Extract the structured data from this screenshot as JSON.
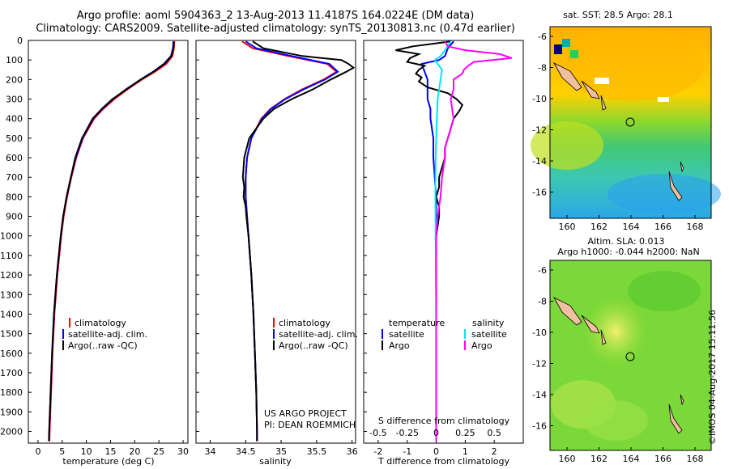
{
  "title": {
    "line1": "Argo profile: aoml 5904363_2 13-Aug-2013 11.4187S 164.0224E (DM data)",
    "line2": "Climatology: CARS2009. Satellite-adjusted climatology: synTS_20130813.nc (0.47d earlier)"
  },
  "credit": "©IMOS 04-Aug-2017 15:11:56",
  "panels": {
    "temperature": {
      "xlabel": "temperature (deg C)",
      "xticks": [
        0,
        5,
        10,
        15,
        20,
        25,
        30
      ],
      "legend": [
        "climatology",
        "satellite-adj. clim.",
        "Argo(..raw -QC)"
      ]
    },
    "salinity": {
      "xlabel": "salinity",
      "xticks": [
        "34",
        "34.5",
        "35",
        "35.5",
        "36"
      ],
      "legend": [
        "climatology",
        "satellite-adj. clim.",
        "Argo(..raw -QC)"
      ],
      "annotation": [
        "US ARGO PROJECT",
        "PI: DEAN ROEMMICH"
      ]
    },
    "difference": {
      "xlabel": "T difference from climatology",
      "top_label": "S difference from climatology",
      "top_ticks": [
        "-0.5",
        "-0.25",
        "0",
        "0.25",
        "0.5"
      ],
      "xticks": [
        "-2",
        "-1",
        "0",
        "1",
        "2"
      ],
      "legend_t_header": "temperature",
      "legend_s_header": "salinity",
      "legend_t": [
        "satellite",
        "Argo"
      ],
      "legend_s": [
        "satellite",
        "Argo"
      ]
    },
    "depth_ticks": [
      0,
      100,
      200,
      300,
      400,
      500,
      600,
      700,
      800,
      900,
      1000,
      1100,
      1200,
      1300,
      1400,
      1500,
      1600,
      1700,
      1800,
      1900,
      2000
    ]
  },
  "maps": {
    "sst": {
      "title": "sat. SST: 28.5  Argo: 28.1"
    },
    "sla": {
      "title1": "Altim. SLA: 0.013",
      "title2": "Argo h1000: -0.044 h2000: NaN"
    },
    "lon_ticks": [
      "160",
      "162",
      "164",
      "166",
      "168"
    ],
    "lat_ticks": [
      "-6",
      "-8",
      "-10",
      "-12",
      "-14",
      "-16"
    ]
  },
  "colors": {
    "climatology": "#ff0000",
    "satellite": "#0000ff",
    "argo": "#000000",
    "s_sat": "#00e5ff",
    "s_argo": "#ff00ff"
  },
  "chart_data": [
    {
      "type": "line",
      "name": "temperature profile",
      "xlabel": "temperature (deg C)",
      "ylabel": "",
      "xlim": [
        -2,
        31
      ],
      "ylim": [
        2060,
        0
      ],
      "series": [
        {
          "name": "climatology",
          "depth": [
            5,
            40,
            80,
            120,
            160,
            200,
            250,
            300,
            350,
            400,
            500,
            600,
            700,
            800,
            900,
            1000,
            1200,
            1400,
            1600,
            1800,
            2000,
            2050
          ],
          "values": [
            28.2,
            28.1,
            27.8,
            26.5,
            24.2,
            21.5,
            18.5,
            15.8,
            13.5,
            11.6,
            9.3,
            7.9,
            6.9,
            6.0,
            5.3,
            4.8,
            4.0,
            3.4,
            3.0,
            2.7,
            2.4,
            2.35
          ]
        },
        {
          "name": "satellite-adj. clim.",
          "depth": [
            5,
            40,
            80,
            120,
            160,
            200,
            250,
            300,
            350,
            400,
            500,
            600,
            700,
            800,
            900,
            1000,
            1200,
            1400,
            1600,
            1800,
            2000,
            2050
          ],
          "values": [
            28.0,
            27.9,
            27.5,
            26.0,
            23.8,
            21.2,
            18.2,
            15.5,
            13.3,
            11.4,
            9.2,
            7.8,
            6.8,
            5.9,
            5.2,
            4.7,
            3.9,
            3.3,
            2.9,
            2.6,
            2.3,
            2.25
          ]
        },
        {
          "name": "Argo(..raw -QC)",
          "depth": [
            5,
            40,
            80,
            120,
            160,
            200,
            250,
            300,
            350,
            400,
            500,
            600,
            700,
            800,
            900,
            1000,
            1200,
            1400,
            1600,
            1800,
            2000,
            2050
          ],
          "values": [
            28.1,
            28.0,
            27.6,
            26.2,
            23.9,
            21.3,
            18.3,
            15.4,
            13.2,
            11.3,
            9.1,
            7.7,
            6.8,
            5.9,
            5.2,
            4.7,
            3.9,
            3.3,
            2.9,
            2.6,
            2.3,
            2.25
          ]
        }
      ]
    },
    {
      "type": "line",
      "name": "salinity profile",
      "xlabel": "salinity",
      "ylabel": "",
      "xlim": [
        33.8,
        36.05
      ],
      "ylim": [
        2060,
        0
      ],
      "series": [
        {
          "name": "climatology",
          "depth": [
            5,
            40,
            80,
            120,
            160,
            200,
            250,
            300,
            350,
            400,
            500,
            600,
            700,
            800,
            900,
            1000,
            1200,
            1400,
            1600,
            1800,
            2000,
            2050
          ],
          "values": [
            34.45,
            34.6,
            35.1,
            35.65,
            35.78,
            35.6,
            35.3,
            35.05,
            34.85,
            34.72,
            34.58,
            34.52,
            34.5,
            34.5,
            34.52,
            34.54,
            34.58,
            34.61,
            34.63,
            34.65,
            34.66,
            34.66
          ]
        },
        {
          "name": "satellite-adj. clim.",
          "depth": [
            5,
            40,
            80,
            120,
            160,
            200,
            250,
            300,
            350,
            400,
            500,
            600,
            700,
            800,
            900,
            1000,
            1200,
            1400,
            1600,
            1800,
            2000,
            2050
          ],
          "values": [
            34.5,
            34.65,
            35.15,
            35.68,
            35.8,
            35.62,
            35.32,
            35.06,
            34.86,
            34.73,
            34.58,
            34.52,
            34.5,
            34.5,
            34.52,
            34.54,
            34.58,
            34.61,
            34.63,
            34.65,
            34.66,
            34.66
          ]
        },
        {
          "name": "Argo(..raw -QC)",
          "depth": [
            5,
            40,
            80,
            100,
            120,
            140,
            160,
            200,
            250,
            300,
            350,
            400,
            500,
            600,
            650,
            700,
            750,
            800,
            850,
            900,
            1000,
            1200,
            1400,
            1600,
            1800,
            2000,
            2050
          ],
          "values": [
            34.6,
            34.75,
            35.3,
            35.85,
            35.95,
            36.02,
            35.92,
            35.7,
            35.45,
            35.15,
            34.9,
            34.75,
            34.55,
            34.48,
            34.47,
            34.46,
            34.48,
            34.47,
            34.5,
            34.51,
            34.54,
            34.58,
            34.61,
            34.63,
            34.65,
            34.66,
            34.66
          ]
        }
      ]
    },
    {
      "type": "line",
      "name": "difference from climatology",
      "xlabel": "T difference from climatology",
      "ylabel": "",
      "xlim": [
        -2.5,
        3
      ],
      "ylim": [
        2060,
        0
      ],
      "series": [
        {
          "name": "temperature satellite",
          "depth": [
            5,
            40,
            80,
            100,
            120,
            160,
            200,
            250,
            300,
            350,
            400,
            500,
            600,
            800,
            1000,
            1200,
            1500,
            2000,
            2050
          ],
          "values": [
            0.6,
            0.4,
            0.3,
            0.1,
            -0.5,
            -0.4,
            -0.3,
            -0.3,
            -0.3,
            -0.2,
            -0.2,
            -0.1,
            -0.1,
            0,
            0,
            0,
            0,
            0,
            0
          ]
        },
        {
          "name": "temperature Argo",
          "depth": [
            5,
            30,
            50,
            70,
            90,
            110,
            130,
            150,
            170,
            190,
            210,
            240,
            270,
            300,
            330,
            360,
            400,
            450,
            500,
            550,
            600,
            650,
            700,
            750,
            800,
            850,
            900,
            950,
            1000,
            1200,
            1500,
            2000,
            2050
          ],
          "values": [
            0.5,
            -0.8,
            -1.4,
            -0.6,
            -0.9,
            -1.0,
            -0.4,
            -0.6,
            -0.7,
            -0.5,
            -0.6,
            -0.3,
            0.4,
            0.7,
            0.9,
            0.8,
            0.6,
            0.5,
            0.4,
            0.3,
            0.3,
            0.2,
            0.1,
            0.1,
            0.0,
            0.1,
            0.1,
            0.05,
            0,
            0,
            0,
            0,
            0
          ]
        },
        {
          "name": "salinity satellite",
          "depth": [
            5,
            40,
            80,
            100,
            150,
            200,
            300,
            400,
            500,
            600,
            800,
            1000,
            1500,
            2000,
            2050
          ],
          "values": [
            0.5,
            0.35,
            0.15,
            -0.05,
            0.2,
            0.15,
            0.05,
            0.02,
            0.0,
            -0.02,
            -0.03,
            -0.02,
            0,
            0,
            0
          ]
        },
        {
          "name": "salinity Argo",
          "depth": [
            5,
            30,
            50,
            70,
            90,
            110,
            130,
            150,
            170,
            200,
            250,
            300,
            350,
            400,
            450,
            500,
            550,
            600,
            700,
            800,
            850,
            900,
            1000,
            1200,
            1500,
            2000,
            2050
          ],
          "values": [
            0.3,
            0.4,
            1.0,
            2.2,
            2.6,
            1.3,
            1.1,
            0.95,
            0.9,
            0.6,
            0.6,
            0.5,
            0.55,
            0.6,
            0.5,
            0.4,
            0.3,
            0.3,
            0.2,
            0.15,
            0.1,
            0.05,
            0,
            0,
            0,
            0,
            0
          ]
        }
      ]
    }
  ]
}
